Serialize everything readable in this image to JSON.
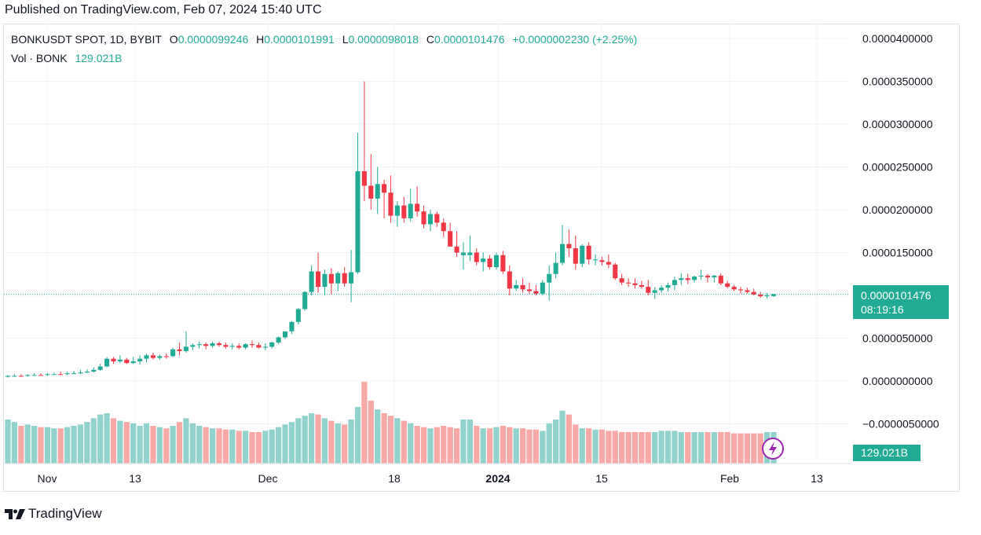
{
  "header": {
    "published": "Published on TradingView.com, Feb 07, 2024 15:40 UTC"
  },
  "legend": {
    "symbol": "BONKUSDT SPOT, 1D, BYBIT",
    "o_label": "O",
    "o": "0.0000099246",
    "h_label": "H",
    "h": "0.0000101991",
    "l_label": "L",
    "l": "0.0000098018",
    "c_label": "C",
    "c": "0.0000101476",
    "change": "+0.0000002230 (+2.25%)",
    "vol_label": "Vol · BONK",
    "vol": "129.021B"
  },
  "price_tag": {
    "price": "0.0000101476",
    "countdown": "08:19:16"
  },
  "volume_tag": "129.021B",
  "footer": {
    "brand": "TradingView",
    "logo_icon": "tradingview-logo-icon"
  },
  "colors": {
    "up": "#22ab94",
    "down": "#f23645",
    "up_vol": "#92d2cc",
    "down_vol": "#f7a9a7",
    "grid": "#f0f3fa"
  },
  "chart_data": {
    "type": "candlestick",
    "title": "BONKUSDT SPOT, 1D, BYBIT",
    "price_axis": {
      "ticks": [
        4e-05,
        3.5e-05,
        3e-05,
        2.5e-05,
        2e-05,
        1.5e-05,
        1e-05,
        5e-06,
        0,
        -5e-06
      ],
      "tick_labels": [
        "0.0000400000",
        "0.0000350000",
        "0.0000300000",
        "0.0000250000",
        "0.0000200000",
        "0.0000150000",
        "0.0000100000",
        "0.0000050000",
        "0.0000000000",
        "−0.0000050000"
      ],
      "range": [
        -8.75e-06,
        4.42e-05
      ]
    },
    "time_axis": {
      "labels": [
        "Nov",
        "13",
        "Dec",
        "18",
        "2024",
        "15",
        "Feb",
        "13"
      ],
      "bold": [
        "2024"
      ]
    },
    "date_range": [
      "2023-11-01",
      "2024-02-07"
    ],
    "candles": [
      [
        5e-07,
        7e-07,
        4e-07,
        6e-07,
        "up",
        3.5
      ],
      [
        6e-07,
        8e-07,
        5e-07,
        6e-07,
        "up",
        3.3
      ],
      [
        6e-07,
        8e-07,
        5e-07,
        6e-07,
        "down",
        3.0
      ],
      [
        6e-07,
        8e-07,
        5e-07,
        7e-07,
        "up",
        3.1
      ],
      [
        7e-07,
        9e-07,
        6e-07,
        7e-07,
        "up",
        3.0
      ],
      [
        7e-07,
        9e-07,
        6e-07,
        7e-07,
        "down",
        2.9
      ],
      [
        7e-07,
        9e-07,
        6e-07,
        8e-07,
        "up",
        2.9
      ],
      [
        8e-07,
        1e-06,
        7e-07,
        8e-07,
        "up",
        2.8
      ],
      [
        8e-07,
        1.1e-06,
        7e-07,
        8e-07,
        "down",
        2.8
      ],
      [
        8e-07,
        1.1e-06,
        7e-07,
        9e-07,
        "up",
        2.9
      ],
      [
        9e-07,
        1.2e-06,
        8e-07,
        9e-07,
        "up",
        3.0
      ],
      [
        9e-07,
        1.3e-06,
        8e-07,
        1e-06,
        "up",
        3.1
      ],
      [
        1e-06,
        1.4e-06,
        9e-07,
        1.1e-06,
        "up",
        3.3
      ],
      [
        1.1e-06,
        1.6e-06,
        1e-06,
        1.3e-06,
        "up",
        3.6
      ],
      [
        1.3e-06,
        2e-06,
        1.2e-06,
        1.7e-06,
        "up",
        3.9
      ],
      [
        1.7e-06,
        2.8e-06,
        1.6e-06,
        2.6e-06,
        "up",
        4.0
      ],
      [
        2.6e-06,
        2.8e-06,
        2e-06,
        2.3e-06,
        "down",
        3.6
      ],
      [
        2.3e-06,
        3e-06,
        2.1e-06,
        2.5e-06,
        "up",
        3.4
      ],
      [
        2.5e-06,
        2.7e-06,
        2e-06,
        2.1e-06,
        "down",
        3.3
      ],
      [
        2.1e-06,
        2.8e-06,
        2e-06,
        2.3e-06,
        "up",
        3.2
      ],
      [
        2.3e-06,
        3e-06,
        1.9e-06,
        2.6e-06,
        "up",
        3.0
      ],
      [
        2.6e-06,
        3.2e-06,
        2.2e-06,
        3e-06,
        "up",
        3.2
      ],
      [
        3e-06,
        3.3e-06,
        2.5e-06,
        2.7e-06,
        "down",
        3.0
      ],
      [
        2.7e-06,
        3.1e-06,
        2.5e-06,
        2.9e-06,
        "up",
        2.9
      ],
      [
        2.9e-06,
        3.2e-06,
        2.6e-06,
        2.9e-06,
        "down",
        2.8
      ],
      [
        2.9e-06,
        3.9e-06,
        2.8e-06,
        3.7e-06,
        "up",
        3.0
      ],
      [
        3.7e-06,
        4.5e-06,
        3e-06,
        3.5e-06,
        "down",
        3.3
      ],
      [
        3.5e-06,
        5.8e-06,
        3.3e-06,
        4e-06,
        "up",
        3.6
      ],
      [
        4e-06,
        4.4e-06,
        3.6e-06,
        4.2e-06,
        "up",
        3.2
      ],
      [
        4.2e-06,
        4.6e-06,
        3.8e-06,
        4.3e-06,
        "up",
        3.0
      ],
      [
        4.3e-06,
        4.5e-06,
        3.7e-06,
        4.1e-06,
        "down",
        2.9
      ],
      [
        4.1e-06,
        4.6e-06,
        3.9e-06,
        4.4e-06,
        "up",
        2.8
      ],
      [
        4.4e-06,
        4.6e-06,
        4e-06,
        4.2e-06,
        "down",
        2.8
      ],
      [
        4.2e-06,
        4.5e-06,
        3.8e-06,
        4e-06,
        "down",
        2.7
      ],
      [
        4e-06,
        4.4e-06,
        3.7e-06,
        4.1e-06,
        "up",
        2.7
      ],
      [
        4.1e-06,
        4.4e-06,
        3.7e-06,
        3.9e-06,
        "down",
        2.6
      ],
      [
        3.9e-06,
        4.4e-06,
        3.7e-06,
        4.3e-06,
        "up",
        2.6
      ],
      [
        4.3e-06,
        4.7e-06,
        3.9e-06,
        4.2e-06,
        "down",
        2.5
      ],
      [
        4.2e-06,
        4.5e-06,
        3.8e-06,
        3.9e-06,
        "down",
        2.5
      ],
      [
        3.9e-06,
        4.4e-06,
        3.6e-06,
        4e-06,
        "up",
        2.6
      ],
      [
        4e-06,
        4.6e-06,
        3.8e-06,
        4.5e-06,
        "up",
        2.7
      ],
      [
        4.5e-06,
        5.2e-06,
        4.3e-06,
        5.1e-06,
        "up",
        2.9
      ],
      [
        5.1e-06,
        5.8e-06,
        4.9e-06,
        5.8e-06,
        "up",
        3.1
      ],
      [
        5.8e-06,
        7e-06,
        5.5e-06,
        6.9e-06,
        "up",
        3.3
      ],
      [
        6.9e-06,
        8.5e-06,
        6.6e-06,
        8.4e-06,
        "up",
        3.6
      ],
      [
        8.4e-06,
        1.05e-05,
        8.2e-06,
        1.04e-05,
        "up",
        3.8
      ],
      [
        1.04e-05,
        1.35e-05,
        1e-05,
        1.28e-05,
        "up",
        4.0
      ],
      [
        1.28e-05,
        1.5e-05,
        1.03e-05,
        1.1e-05,
        "down",
        3.9
      ],
      [
        1.1e-05,
        1.3e-05,
        1e-05,
        1.25e-05,
        "up",
        3.6
      ],
      [
        1.25e-05,
        1.32e-05,
        1.01e-05,
        1.14e-05,
        "down",
        3.4
      ],
      [
        1.14e-05,
        1.28e-05,
        1.05e-05,
        1.26e-05,
        "up",
        3.2
      ],
      [
        1.26e-05,
        1.33e-05,
        1.1e-05,
        1.14e-05,
        "down",
        3.1
      ],
      [
        1.14e-05,
        1.53e-05,
        9.2e-06,
        1.27e-05,
        "up",
        3.5
      ],
      [
        1.27e-05,
        2.9e-05,
        1.25e-05,
        2.45e-05,
        "up",
        4.5
      ],
      [
        2.45e-05,
        3.5e-05,
        2.1e-05,
        2.28e-05,
        "down",
        6.5
      ],
      [
        2.28e-05,
        2.65e-05,
        2e-05,
        2.13e-05,
        "down",
        5.0
      ],
      [
        2.13e-05,
        2.5e-05,
        1.95e-05,
        2.3e-05,
        "up",
        4.3
      ],
      [
        2.3e-05,
        2.35e-05,
        1.9e-05,
        2.2e-05,
        "down",
        4.0
      ],
      [
        2.2e-05,
        2.4e-05,
        1.85e-05,
        1.93e-05,
        "down",
        3.8
      ],
      [
        1.93e-05,
        2.1e-05,
        1.8e-05,
        2.05e-05,
        "up",
        3.6
      ],
      [
        2.05e-05,
        2.15e-05,
        1.85e-05,
        1.9e-05,
        "down",
        3.4
      ],
      [
        1.9e-05,
        2.25e-05,
        1.86e-05,
        2.07e-05,
        "up",
        3.2
      ],
      [
        2.07e-05,
        2.27e-05,
        1.92e-05,
        1.98e-05,
        "down",
        3.0
      ],
      [
        1.98e-05,
        2.05e-05,
        1.78e-05,
        1.83e-05,
        "down",
        2.9
      ],
      [
        1.83e-05,
        2e-05,
        1.75e-05,
        1.95e-05,
        "up",
        2.8
      ],
      [
        1.95e-05,
        1.98e-05,
        1.8e-05,
        1.85e-05,
        "down",
        2.9
      ],
      [
        1.85e-05,
        1.9e-05,
        1.68e-05,
        1.75e-05,
        "down",
        3.0
      ],
      [
        1.75e-05,
        1.85e-05,
        1.58e-05,
        1.57e-05,
        "down",
        2.9
      ],
      [
        1.57e-05,
        1.75e-05,
        1.45e-05,
        1.5e-05,
        "down",
        2.8
      ],
      [
        1.5e-05,
        1.62e-05,
        1.3e-05,
        1.47e-05,
        "up",
        3.5
      ],
      [
        1.47e-05,
        1.7e-05,
        1.4e-05,
        1.5e-05,
        "up",
        3.5
      ],
      [
        1.5e-05,
        1.55e-05,
        1.35e-05,
        1.39e-05,
        "down",
        3.0
      ],
      [
        1.39e-05,
        1.5e-05,
        1.28e-05,
        1.43e-05,
        "up",
        2.8
      ],
      [
        1.43e-05,
        1.47e-05,
        1.3e-05,
        1.33e-05,
        "down",
        2.8
      ],
      [
        1.33e-05,
        1.5e-05,
        1.3e-05,
        1.47e-05,
        "up",
        2.9
      ],
      [
        1.47e-05,
        1.52e-05,
        1.25e-05,
        1.28e-05,
        "down",
        3.0
      ],
      [
        1.28e-05,
        1.35e-05,
        1e-05,
        1.08e-05,
        "down",
        2.9
      ],
      [
        1.08e-05,
        1.18e-05,
        1.05e-05,
        1.12e-05,
        "up",
        2.8
      ],
      [
        1.12e-05,
        1.2e-05,
        1.03e-05,
        1.07e-05,
        "down",
        2.8
      ],
      [
        1.07e-05,
        1.15e-05,
        1.02e-05,
        1.05e-05,
        "down",
        2.7
      ],
      [
        1.05e-05,
        1.12e-05,
        1e-05,
        1.02e-05,
        "down",
        2.7
      ],
      [
        1.02e-05,
        1.18e-05,
        1e-05,
        1.15e-05,
        "up",
        2.6
      ],
      [
        1.15e-05,
        1.35e-05,
        9.4e-06,
        1.25e-05,
        "up",
        3.2
      ],
      [
        1.25e-05,
        1.5e-05,
        1.2e-05,
        1.38e-05,
        "up",
        3.5
      ],
      [
        1.38e-05,
        1.82e-05,
        1.35e-05,
        1.6e-05,
        "up",
        4.2
      ],
      [
        1.6e-05,
        1.77e-05,
        1.45e-05,
        1.55e-05,
        "down",
        3.9
      ],
      [
        1.55e-05,
        1.7e-05,
        1.3e-05,
        1.37e-05,
        "down",
        3.1
      ],
      [
        1.37e-05,
        1.6e-05,
        1.33e-05,
        1.58e-05,
        "up",
        2.8
      ],
      [
        1.58e-05,
        1.62e-05,
        1.36e-05,
        1.42e-05,
        "down",
        2.8
      ],
      [
        1.42e-05,
        1.48e-05,
        1.35e-05,
        1.41e-05,
        "up",
        2.7
      ],
      [
        1.41e-05,
        1.45e-05,
        1.35e-05,
        1.39e-05,
        "down",
        2.7
      ],
      [
        1.39e-05,
        1.48e-05,
        1.32e-05,
        1.36e-05,
        "down",
        2.6
      ],
      [
        1.36e-05,
        1.38e-05,
        1.18e-05,
        1.2e-05,
        "down",
        2.6
      ],
      [
        1.2e-05,
        1.25e-05,
        1.12e-05,
        1.15e-05,
        "down",
        2.5
      ],
      [
        1.15e-05,
        1.2e-05,
        1.1e-05,
        1.14e-05,
        "down",
        2.5
      ],
      [
        1.14e-05,
        1.2e-05,
        1.08e-05,
        1.12e-05,
        "down",
        2.5
      ],
      [
        1.12e-05,
        1.17e-05,
        1.08e-05,
        1.1e-05,
        "down",
        2.5
      ],
      [
        1.1e-05,
        1.18e-05,
        1e-05,
        1.03e-05,
        "down",
        2.5
      ],
      [
        1.03e-05,
        1.1e-05,
        9.6e-06,
        1.06e-05,
        "up",
        2.5
      ],
      [
        1.06e-05,
        1.12e-05,
        1.03e-05,
        1.09e-05,
        "up",
        2.6
      ],
      [
        1.09e-05,
        1.15e-05,
        1.05e-05,
        1.12e-05,
        "up",
        2.6
      ],
      [
        1.12e-05,
        1.22e-05,
        1.06e-05,
        1.18e-05,
        "up",
        2.6
      ],
      [
        1.18e-05,
        1.26e-05,
        1.12e-05,
        1.2e-05,
        "up",
        2.5
      ],
      [
        1.2e-05,
        1.25e-05,
        1.13e-05,
        1.18e-05,
        "down",
        2.5
      ],
      [
        1.18e-05,
        1.23e-05,
        1.15e-05,
        1.22e-05,
        "up",
        2.5
      ],
      [
        1.22e-05,
        1.3e-05,
        1.18e-05,
        1.23e-05,
        "up",
        2.5
      ],
      [
        1.23e-05,
        1.25e-05,
        1.15e-05,
        1.21e-05,
        "down",
        2.5
      ],
      [
        1.21e-05,
        1.24e-05,
        1.15e-05,
        1.23e-05,
        "up",
        2.5
      ],
      [
        1.23e-05,
        1.26e-05,
        1.12e-05,
        1.14e-05,
        "down",
        2.5
      ],
      [
        1.14e-05,
        1.17e-05,
        1.08e-05,
        1.1e-05,
        "down",
        2.5
      ],
      [
        1.1e-05,
        1.12e-05,
        1.05e-05,
        1.07e-05,
        "down",
        2.4
      ],
      [
        1.07e-05,
        1.1e-05,
        1.02e-05,
        1.06e-05,
        "down",
        2.4
      ],
      [
        1.06e-05,
        1.09e-05,
        1.02e-05,
        1.04e-05,
        "down",
        2.4
      ],
      [
        1.04e-05,
        1.08e-05,
        1e-05,
        1.01e-05,
        "down",
        2.4
      ],
      [
        1.01e-05,
        1.04e-05,
        9.7e-06,
        9.9e-06,
        "down",
        2.4
      ],
      [
        9.9e-06,
        1.03e-05,
        9.6e-06,
        1e-05,
        "up",
        2.5
      ],
      [
        9.9246e-06,
        1.01991e-05,
        9.8018e-06,
        1.01476e-05,
        "up",
        2.5
      ]
    ]
  }
}
